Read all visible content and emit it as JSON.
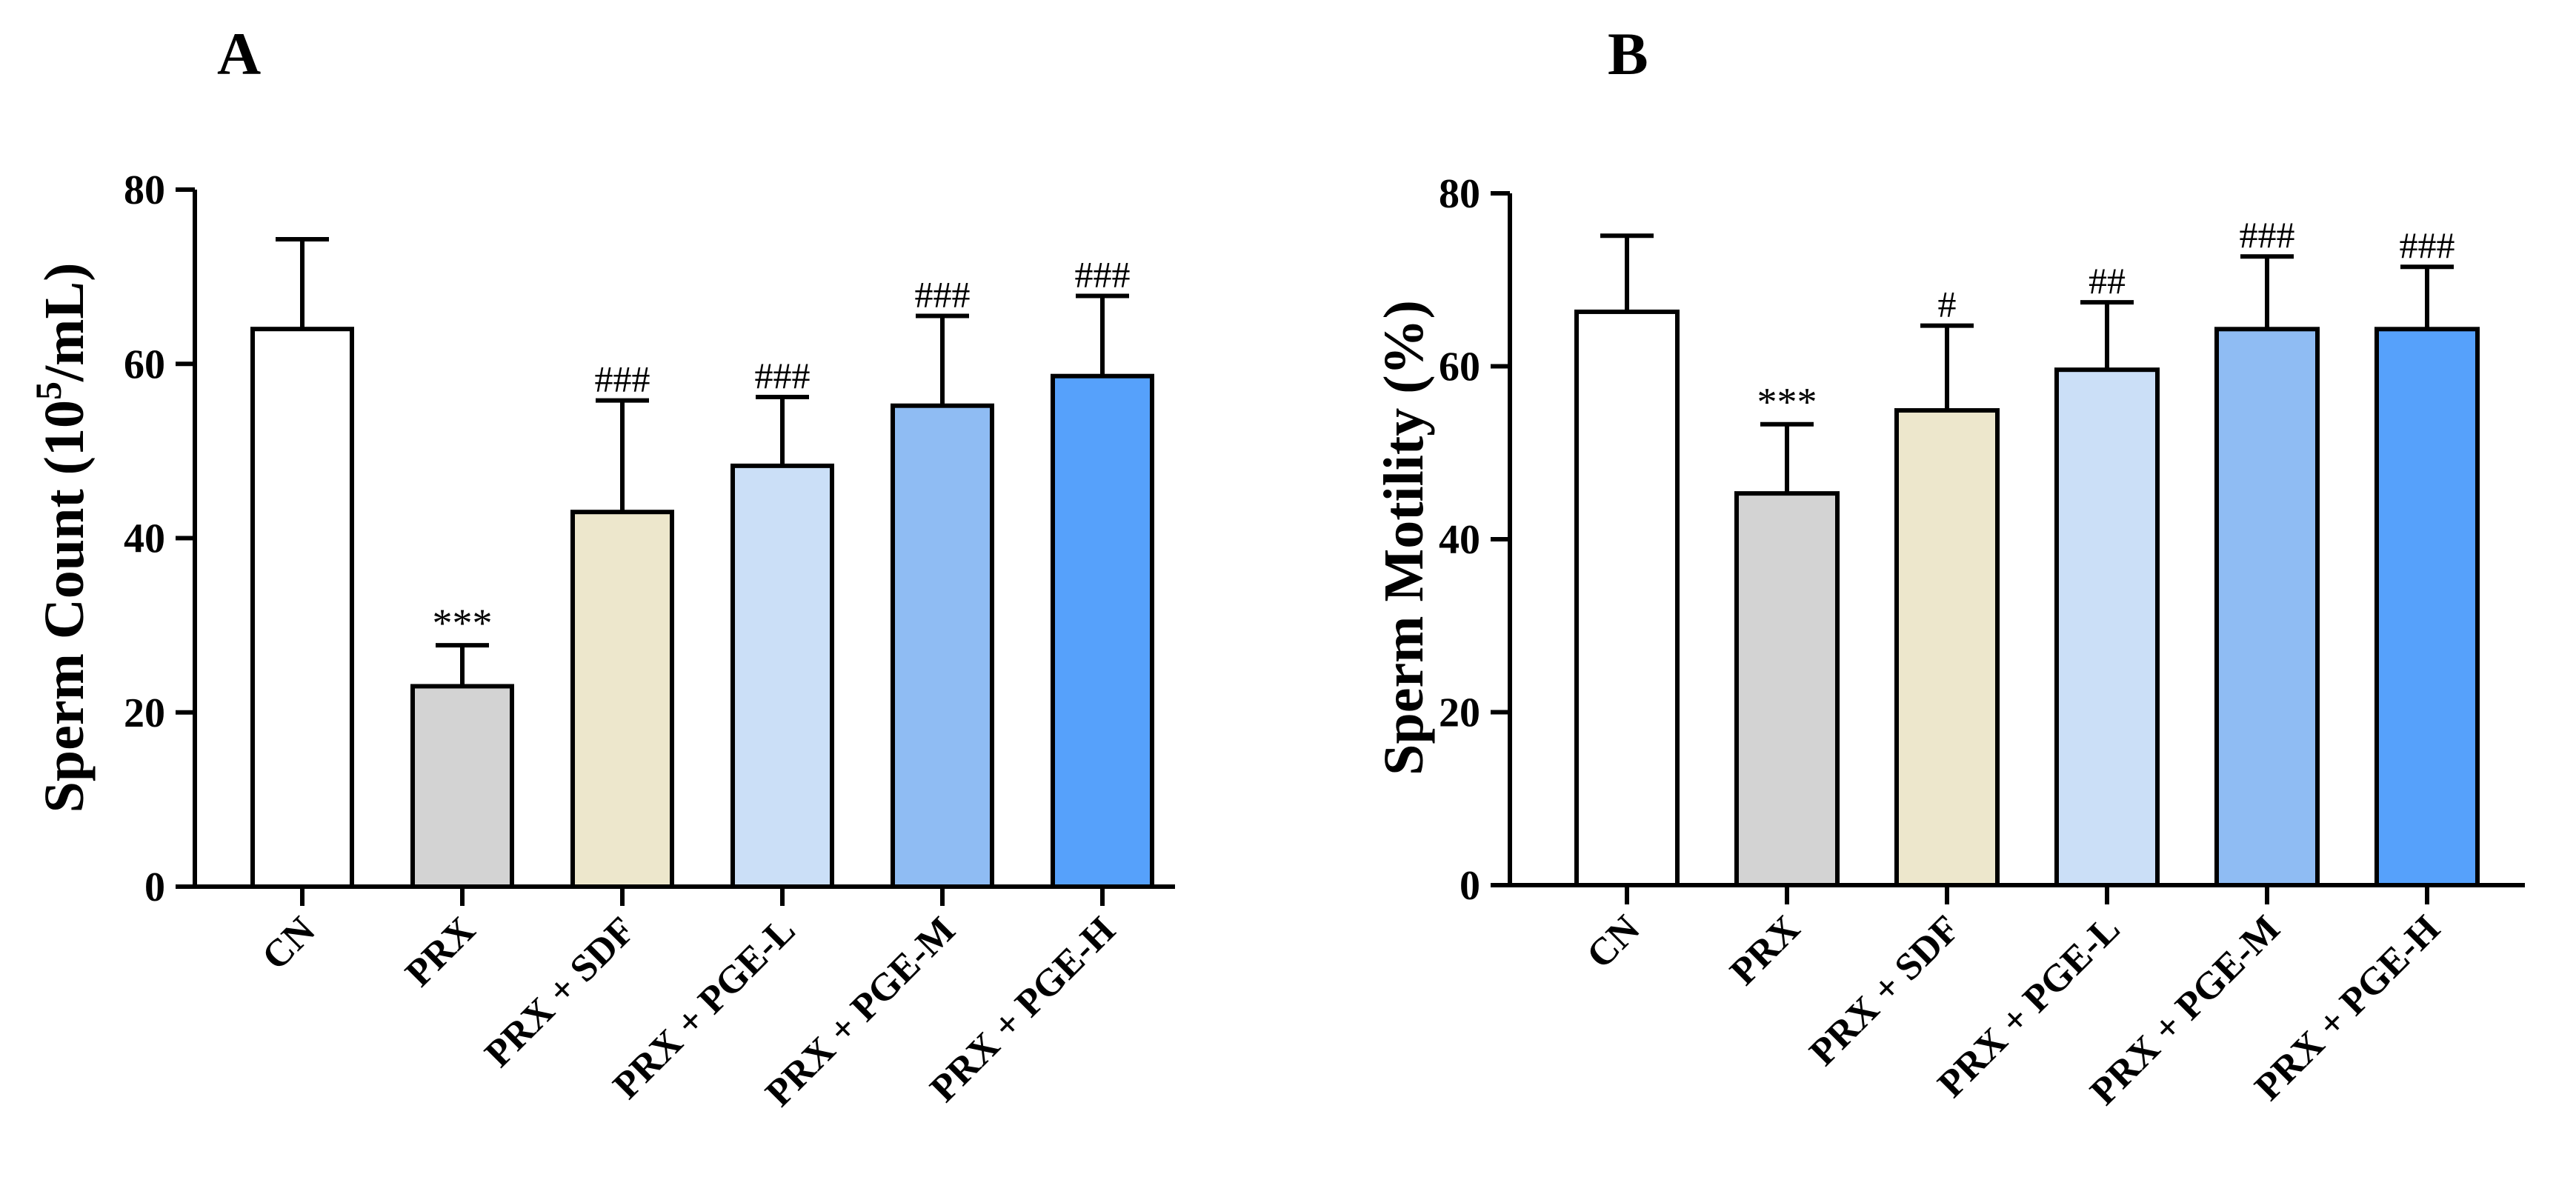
{
  "chart_data": [
    {
      "panel_label": "A",
      "type": "bar",
      "ylabel": "Sperm Count (10",
      "ylabel_sup": "5",
      "ylabel_suffix": "/mL)",
      "xlabel": "",
      "ylim": [
        0,
        80
      ],
      "yticks": [
        "0",
        "20",
        "40",
        "60",
        "80"
      ],
      "categories": [
        "CN",
        "PRX",
        "PRX + SDF",
        "PRX + PGE-L",
        "PRX + PGE-M",
        "PRX + PGE-H"
      ],
      "values": [
        64,
        23,
        43,
        48.3,
        55.2,
        58.6
      ],
      "errors": [
        10.3,
        4.7,
        12.8,
        7.9,
        10.3,
        9.2
      ],
      "annotations": [
        "",
        "***",
        "###",
        "###",
        "###",
        "###"
      ],
      "colors": [
        "#ffffff",
        "#d3d3d3",
        "#ede7cc",
        "#cbdff7",
        "#8fbcf3",
        "#56a1fb"
      ]
    },
    {
      "panel_label": "B",
      "type": "bar",
      "ylabel": "Sperm Motility (%)",
      "ylabel_sup": "",
      "ylabel_suffix": "",
      "xlabel": "",
      "ylim": [
        0,
        80
      ],
      "yticks": [
        "0",
        "20",
        "40",
        "60",
        "80"
      ],
      "categories": [
        "CN",
        "PRX",
        "PRX + SDF",
        "PRX + PGE-L",
        "PRX + PGE-M",
        "PRX + PGE-H"
      ],
      "values": [
        66.3,
        45.3,
        54.9,
        59.6,
        64.3,
        64.3
      ],
      "errors": [
        8.8,
        8,
        9.8,
        7.8,
        8.4,
        7.2
      ],
      "annotations": [
        "",
        "***",
        "#",
        "##",
        "###",
        "###"
      ],
      "colors": [
        "#ffffff",
        "#d3d3d3",
        "#ede7cc",
        "#cbdff7",
        "#8fbcf3",
        "#56a1fb"
      ]
    }
  ]
}
